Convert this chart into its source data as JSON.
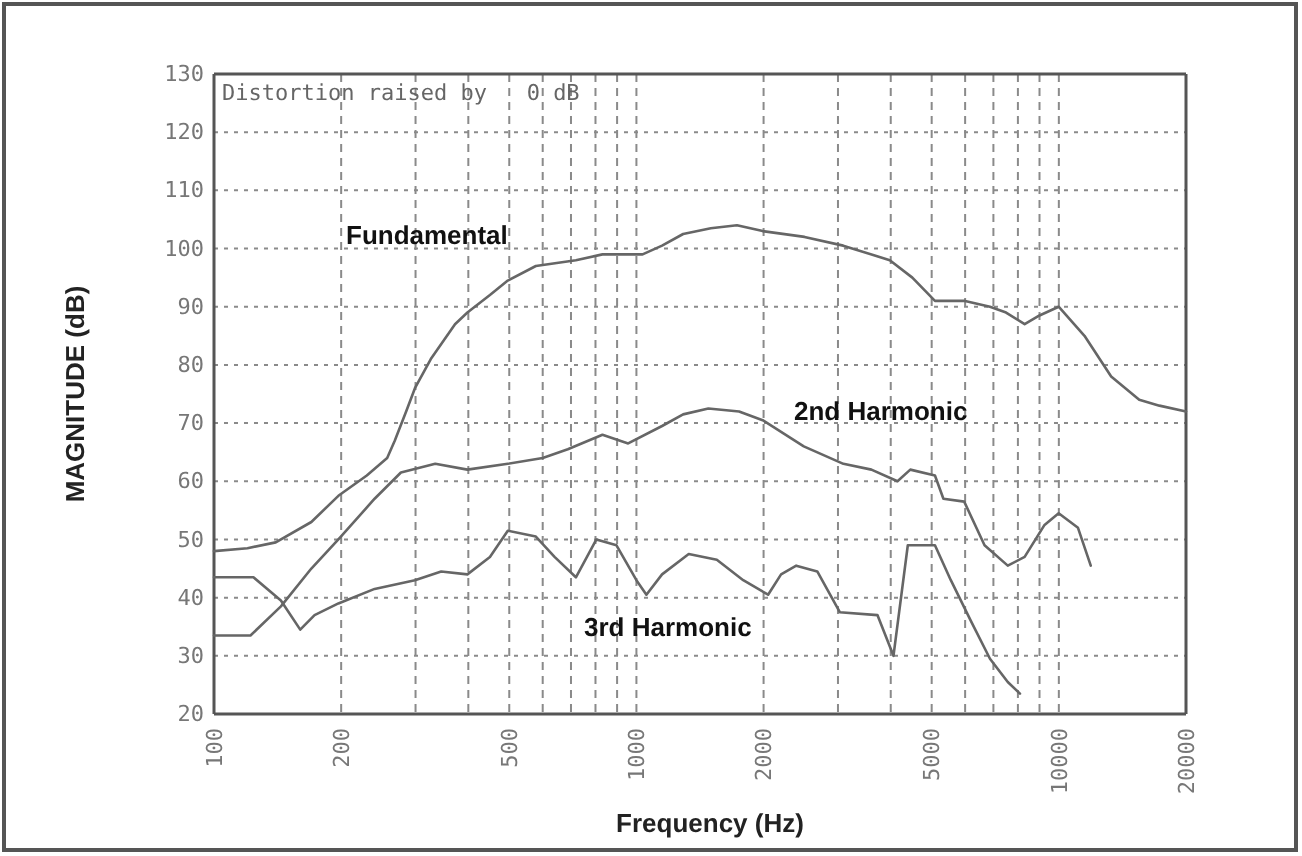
{
  "chart_data": {
    "type": "line",
    "xlabel": "Frequency (Hz)",
    "ylabel": "MAGNITUDE (dB)",
    "annotations": [
      "Distortion raised by   0 dB"
    ],
    "log": "x",
    "grid": true,
    "xlim": [
      100,
      20000
    ],
    "ylim": [
      20,
      130
    ],
    "xticks": [
      100,
      200,
      {
        "value": 300,
        "label": null
      },
      {
        "value": 400,
        "label": null
      },
      500,
      {
        "value": 600,
        "label": null
      },
      {
        "value": 700,
        "label": null
      },
      {
        "value": 800,
        "label": null
      },
      {
        "value": 900,
        "label": null
      },
      1000,
      2000,
      {
        "value": 3000,
        "label": null
      },
      {
        "value": 4000,
        "label": null
      },
      5000,
      {
        "value": 6000,
        "label": null
      },
      {
        "value": 7000,
        "label": null
      },
      {
        "value": 8000,
        "label": null
      },
      {
        "value": 9000,
        "label": null
      },
      10000,
      20000
    ],
    "yticks": [
      20,
      30,
      40,
      50,
      60,
      70,
      80,
      90,
      100,
      110,
      120,
      130
    ],
    "series": [
      {
        "name": "Fundamental",
        "color": "#666666",
        "x": [
          100,
          120,
          140,
          170,
          197,
          230,
          257,
          268,
          285,
          299,
          326,
          372,
          398,
          450,
          496,
          578,
          719,
          831,
          1034,
          1150,
          1290,
          1500,
          1730,
          1990,
          2500,
          3087,
          3980,
          4500,
          5090,
          6000,
          6870,
          7500,
          8300,
          9000,
          9990,
          11500,
          13300,
          15500,
          17300,
          20000
        ],
        "values": [
          48,
          48.5,
          49.5,
          53,
          57.5,
          61,
          64,
          67,
          72,
          76,
          81,
          87,
          89,
          92,
          94.5,
          97,
          98,
          99,
          99,
          100.5,
          102.5,
          103.5,
          104,
          103,
          102,
          100.5,
          98,
          95,
          91,
          91,
          90,
          89,
          87,
          88.5,
          90,
          85,
          78,
          74,
          73,
          72
        ]
      },
      {
        "name": "2nd Harmonic",
        "color": "#666666",
        "x": [
          100,
          122,
          144,
          170,
          197,
          240,
          277,
          334,
          398,
          496,
          600,
          688,
          831,
          956,
          1150,
          1290,
          1480,
          1750,
          1990,
          2490,
          3090,
          3600,
          4150,
          4450,
          5090,
          5330,
          5970,
          6670,
          7570,
          8300,
          9250,
          9990,
          11100,
          11900
        ],
        "values": [
          33.5,
          33.5,
          38.5,
          45,
          50,
          57,
          61.5,
          63,
          62,
          63,
          64,
          65.5,
          68,
          66.5,
          69.5,
          71.5,
          72.5,
          72,
          70.5,
          66,
          63,
          62,
          60,
          62,
          61,
          57,
          56.5,
          49,
          45.5,
          47,
          52.5,
          54.5,
          52,
          45.5
        ]
      },
      {
        "name": "3rd Harmonic",
        "color": "#666666",
        "x": [
          100,
          124,
          144,
          160,
          173,
          197,
          240,
          299,
          345,
          398,
          450,
          496,
          578,
          640,
          719,
          804,
          897,
          1000,
          1056,
          1150,
          1330,
          1550,
          1790,
          2050,
          2200,
          2390,
          2680,
          3030,
          3720,
          4060,
          4390,
          5090,
          5550,
          6190,
          6870,
          7570,
          8090
        ],
        "values": [
          43.5,
          43.5,
          39.5,
          34.5,
          37,
          39,
          41.5,
          43,
          44.5,
          44,
          47,
          51.5,
          50.5,
          47,
          43.5,
          50,
          49,
          43,
          40.5,
          44,
          47.5,
          46.5,
          43,
          40.5,
          44,
          45.5,
          44.5,
          37.5,
          37,
          30,
          49,
          49,
          43,
          36,
          29.5,
          25.5,
          23.5
        ]
      }
    ]
  }
}
